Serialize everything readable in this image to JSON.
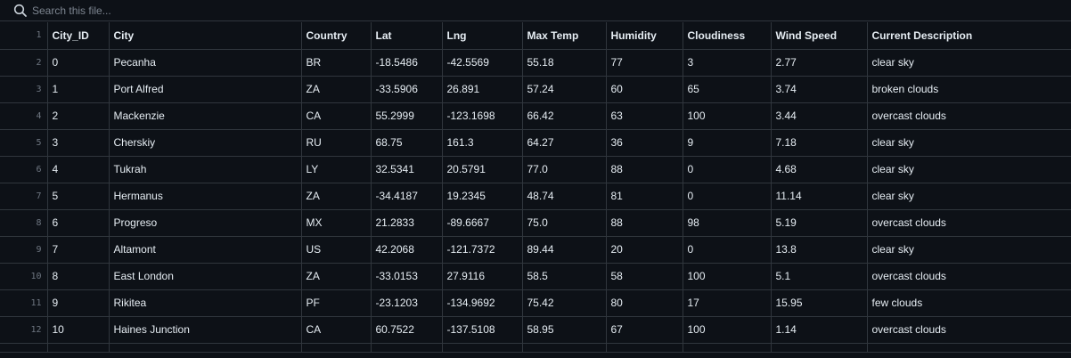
{
  "search": {
    "placeholder": "Search this file...",
    "icon": "search-icon"
  },
  "table": {
    "header_line": "1",
    "headers": [
      "City_ID",
      "City",
      "Country",
      "Lat",
      "Lng",
      "Max Temp",
      "Humidity",
      "Cloudiness",
      "Wind Speed",
      "Current Description"
    ],
    "rows": [
      {
        "line": "2",
        "cells": [
          "0",
          "Pecanha",
          "BR",
          "-18.5486",
          "-42.5569",
          "55.18",
          "77",
          "3",
          "2.77",
          "clear sky"
        ]
      },
      {
        "line": "3",
        "cells": [
          "1",
          "Port Alfred",
          "ZA",
          "-33.5906",
          "26.891",
          "57.24",
          "60",
          "65",
          "3.74",
          "broken clouds"
        ]
      },
      {
        "line": "4",
        "cells": [
          "2",
          "Mackenzie",
          "CA",
          "55.2999",
          "-123.1698",
          "66.42",
          "63",
          "100",
          "3.44",
          "overcast clouds"
        ]
      },
      {
        "line": "5",
        "cells": [
          "3",
          "Cherskiy",
          "RU",
          "68.75",
          "161.3",
          "64.27",
          "36",
          "9",
          "7.18",
          "clear sky"
        ]
      },
      {
        "line": "6",
        "cells": [
          "4",
          "Tukrah",
          "LY",
          "32.5341",
          "20.5791",
          "77.0",
          "88",
          "0",
          "4.68",
          "clear sky"
        ]
      },
      {
        "line": "7",
        "cells": [
          "5",
          "Hermanus",
          "ZA",
          "-34.4187",
          "19.2345",
          "48.74",
          "81",
          "0",
          "11.14",
          "clear sky"
        ]
      },
      {
        "line": "8",
        "cells": [
          "6",
          "Progreso",
          "MX",
          "21.2833",
          "-89.6667",
          "75.0",
          "88",
          "98",
          "5.19",
          "overcast clouds"
        ]
      },
      {
        "line": "9",
        "cells": [
          "7",
          "Altamont",
          "US",
          "42.2068",
          "-121.7372",
          "89.44",
          "20",
          "0",
          "13.8",
          "clear sky"
        ]
      },
      {
        "line": "10",
        "cells": [
          "8",
          "East London",
          "ZA",
          "-33.0153",
          "27.9116",
          "58.5",
          "58",
          "100",
          "5.1",
          "overcast clouds"
        ]
      },
      {
        "line": "11",
        "cells": [
          "9",
          "Rikitea",
          "PF",
          "-23.1203",
          "-134.9692",
          "75.42",
          "80",
          "17",
          "15.95",
          "few clouds"
        ]
      },
      {
        "line": "12",
        "cells": [
          "10",
          "Haines Junction",
          "CA",
          "60.7522",
          "-137.5108",
          "58.95",
          "67",
          "100",
          "1.14",
          "overcast clouds"
        ]
      }
    ]
  }
}
